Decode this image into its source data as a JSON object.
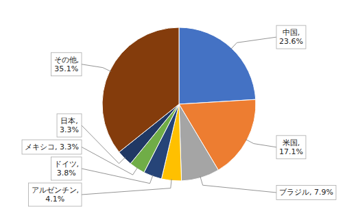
{
  "chart_data": {
    "type": "pie",
    "values": [
      23.6,
      17.1,
      7.9,
      4.1,
      3.8,
      3.3,
      3.3,
      35.1
    ],
    "colors": [
      "#4472C4",
      "#ED7D31",
      "#A5A5A5",
      "#FFC000",
      "#264478",
      "#70AD47",
      "#203864",
      "#843C0C"
    ],
    "value_labels": [
      "中国,\n23.6%",
      "米国,\n17.1%",
      "ブラジル, 7.9%",
      "アルゼンチン,\n4.1%",
      "ドイツ,\n3.8%",
      "メキシコ, 3.3%",
      "日本,\n3.3%",
      "その他,\n35.1%"
    ],
    "data_labels": true
  }
}
